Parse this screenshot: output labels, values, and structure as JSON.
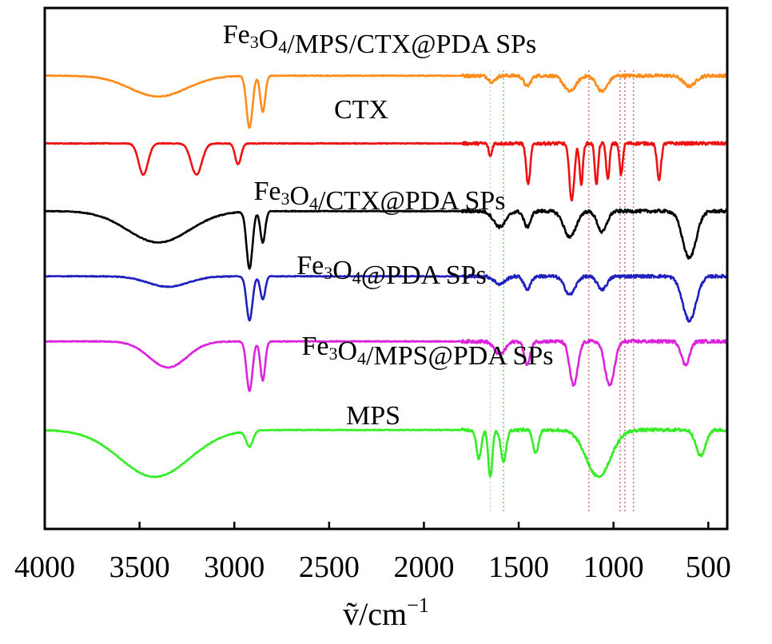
{
  "chart_data": {
    "type": "line",
    "title": "",
    "xlabel": "ṽ/cm⁻¹",
    "xlabel_main": "ṽ/cm",
    "xlabel_exp": "−1",
    "ylabel": "",
    "xlim": [
      4000,
      400
    ],
    "x_reversed": true,
    "y_ticks_shown": false,
    "grid": false,
    "x_ticks": [
      {
        "value": 4000,
        "label": "4000"
      },
      {
        "value": 3500,
        "label": "3500"
      },
      {
        "value": 3000,
        "label": "3000"
      },
      {
        "value": 2500,
        "label": "2500"
      },
      {
        "value": 2000,
        "label": "2000"
      },
      {
        "value": 1500,
        "label": "1500"
      },
      {
        "value": 1000,
        "label": "1000"
      },
      {
        "value": 500,
        "label": "500"
      }
    ],
    "reference_lines": [
      {
        "x": 1650,
        "color": "#cfcfcf"
      },
      {
        "x": 1580,
        "color": "#66cc66"
      },
      {
        "x": 1130,
        "color": "#cc6666"
      },
      {
        "x": 965,
        "color": "#cc6666"
      },
      {
        "x": 940,
        "color": "#cc6666"
      },
      {
        "x": 895,
        "color": "#cc6666"
      }
    ],
    "series": [
      {
        "name": "Fe3O4/MPS/CTX@PDA SPs",
        "label_parts": [
          "Fe",
          "3",
          "O",
          "4",
          "/MPS/CTX@PDA SPs"
        ],
        "color": "#ff8c1a",
        "baseline_fraction": 0.87,
        "bands": [
          {
            "x": 3400,
            "depth": 0.04,
            "w": 210
          },
          {
            "x": 2920,
            "depth": 0.1,
            "w": 22
          },
          {
            "x": 2850,
            "depth": 0.07,
            "w": 18
          },
          {
            "x": 1640,
            "depth": 0.012,
            "w": 25
          },
          {
            "x": 1455,
            "depth": 0.02,
            "w": 25
          },
          {
            "x": 1230,
            "depth": 0.03,
            "w": 45
          },
          {
            "x": 1060,
            "depth": 0.03,
            "w": 40
          },
          {
            "x": 600,
            "depth": 0.02,
            "w": 45
          }
        ]
      },
      {
        "name": "CTX",
        "label_parts": [
          "CTX"
        ],
        "color": "#ee1111",
        "baseline_fraction": 0.74,
        "bands": [
          {
            "x": 3480,
            "depth": 0.06,
            "w": 35
          },
          {
            "x": 3200,
            "depth": 0.06,
            "w": 40
          },
          {
            "x": 2980,
            "depth": 0.04,
            "w": 22
          },
          {
            "x": 1650,
            "depth": 0.025,
            "w": 12
          },
          {
            "x": 1450,
            "depth": 0.08,
            "w": 15
          },
          {
            "x": 1220,
            "depth": 0.11,
            "w": 18
          },
          {
            "x": 1170,
            "depth": 0.08,
            "w": 12
          },
          {
            "x": 1090,
            "depth": 0.08,
            "w": 12
          },
          {
            "x": 1030,
            "depth": 0.07,
            "w": 12
          },
          {
            "x": 960,
            "depth": 0.06,
            "w": 12
          },
          {
            "x": 760,
            "depth": 0.07,
            "w": 15
          }
        ]
      },
      {
        "name": "Fe3O4/CTX@PDA SPs",
        "label_parts": [
          "Fe",
          "3",
          "O",
          "4",
          "/CTX@PDA SPs"
        ],
        "color": "#000000",
        "baseline_fraction": 0.61,
        "bands": [
          {
            "x": 3400,
            "depth": 0.06,
            "w": 230
          },
          {
            "x": 2920,
            "depth": 0.11,
            "w": 22
          },
          {
            "x": 2850,
            "depth": 0.06,
            "w": 18
          },
          {
            "x": 1600,
            "depth": 0.03,
            "w": 45
          },
          {
            "x": 1455,
            "depth": 0.03,
            "w": 25
          },
          {
            "x": 1230,
            "depth": 0.05,
            "w": 45
          },
          {
            "x": 1060,
            "depth": 0.04,
            "w": 35
          },
          {
            "x": 600,
            "depth": 0.09,
            "w": 50
          }
        ]
      },
      {
        "name": "Fe3O4@PDA SPs",
        "label_parts": [
          "Fe",
          "3",
          "O",
          "4",
          "@PDA SPs"
        ],
        "color": "#1f1fbf",
        "baseline_fraction": 0.485,
        "bands": [
          {
            "x": 3350,
            "depth": 0.02,
            "w": 150
          },
          {
            "x": 2920,
            "depth": 0.085,
            "w": 22
          },
          {
            "x": 2850,
            "depth": 0.045,
            "w": 18
          },
          {
            "x": 1600,
            "depth": 0.015,
            "w": 40
          },
          {
            "x": 1455,
            "depth": 0.025,
            "w": 25
          },
          {
            "x": 1230,
            "depth": 0.035,
            "w": 40
          },
          {
            "x": 1060,
            "depth": 0.025,
            "w": 35
          },
          {
            "x": 600,
            "depth": 0.085,
            "w": 50
          }
        ]
      },
      {
        "name": "Fe3O4/MPS@PDA SPs",
        "label_parts": [
          "Fe",
          "3",
          "O",
          "4",
          "/MPS@PDA SPs"
        ],
        "color": "#dd22dd",
        "baseline_fraction": 0.36,
        "bands": [
          {
            "x": 3350,
            "depth": 0.05,
            "w": 140
          },
          {
            "x": 2920,
            "depth": 0.095,
            "w": 22
          },
          {
            "x": 2850,
            "depth": 0.075,
            "w": 18
          },
          {
            "x": 1600,
            "depth": 0.025,
            "w": 40
          },
          {
            "x": 1455,
            "depth": 0.045,
            "w": 22
          },
          {
            "x": 1210,
            "depth": 0.085,
            "w": 30
          },
          {
            "x": 1020,
            "depth": 0.085,
            "w": 35
          },
          {
            "x": 620,
            "depth": 0.045,
            "w": 30
          }
        ]
      },
      {
        "name": "MPS",
        "label_parts": [
          "MPS"
        ],
        "color": "#33ee22",
        "baseline_fraction": 0.19,
        "bands": [
          {
            "x": 3420,
            "depth": 0.09,
            "w": 260
          },
          {
            "x": 2920,
            "depth": 0.03,
            "w": 25
          },
          {
            "x": 1710,
            "depth": 0.055,
            "w": 18
          },
          {
            "x": 1650,
            "depth": 0.09,
            "w": 15
          },
          {
            "x": 1580,
            "depth": 0.06,
            "w": 20
          },
          {
            "x": 1410,
            "depth": 0.045,
            "w": 20
          },
          {
            "x": 1080,
            "depth": 0.09,
            "w": 90
          },
          {
            "x": 540,
            "depth": 0.05,
            "w": 35
          }
        ]
      }
    ]
  }
}
